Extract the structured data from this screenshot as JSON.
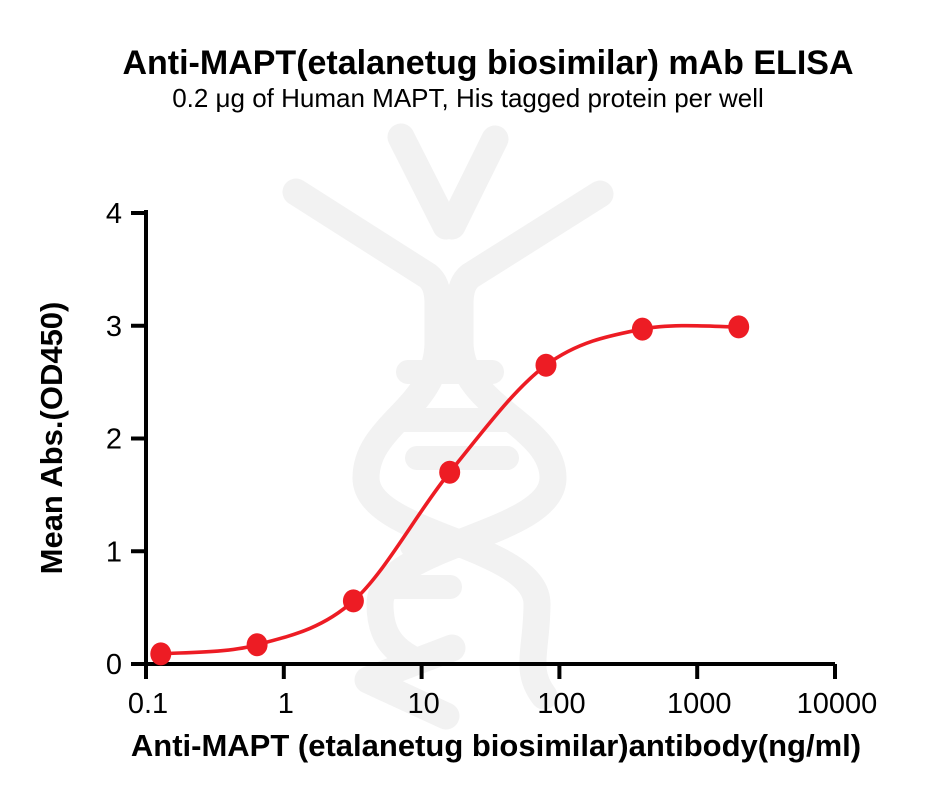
{
  "chart_data": {
    "type": "scatter",
    "title": "Anti-MAPT(etalanetug biosimilar) mAb ELISA",
    "subtitle": "0.2 μg of Human MAPT, His tagged protein per well",
    "xlabel": "Anti-MAPT (etalanetug biosimilar)antibody(ng/ml)",
    "ylabel": "Mean Abs.(OD450)",
    "x_scale": "log10",
    "xlim": [
      0.1,
      10000
    ],
    "ylim": [
      0,
      4
    ],
    "grid": false,
    "legend": "none",
    "x_ticks": [
      0.1,
      1,
      10,
      100,
      1000,
      10000
    ],
    "x_tick_labels": [
      "0.1",
      "1",
      "10",
      "100",
      "1000",
      "10000"
    ],
    "y_ticks": [
      0,
      1,
      2,
      3,
      4
    ],
    "y_tick_labels": [
      "0",
      "1",
      "2",
      "3",
      "4"
    ],
    "series": [
      {
        "color": "#ED1C24",
        "marker": "circle",
        "line": "sigmoid-fit",
        "points": [
          {
            "x": 0.128,
            "y": 0.09
          },
          {
            "x": 0.64,
            "y": 0.17
          },
          {
            "x": 3.2,
            "y": 0.56
          },
          {
            "x": 16,
            "y": 1.7
          },
          {
            "x": 80,
            "y": 2.65
          },
          {
            "x": 400,
            "y": 2.97
          },
          {
            "x": 2000,
            "y": 2.99
          }
        ]
      }
    ],
    "colors": {
      "axis": "#000000",
      "series": "#ED1C24",
      "watermark": "#f2f2f2",
      "background": "#ffffff"
    }
  }
}
